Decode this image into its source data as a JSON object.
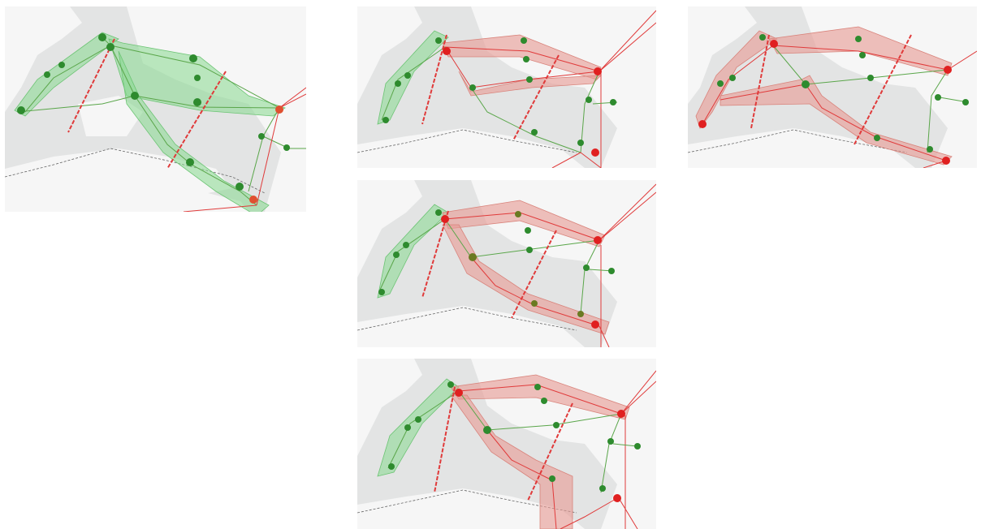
{
  "colors": {
    "background": "#ffffff",
    "water": "#e3e4e4",
    "land": "#f5f5f5",
    "green_station": "#2e8b2e",
    "red_station": "#e02020",
    "green_zone": "#86d88e",
    "red_zone": "#e89a92",
    "green_line": "#5aa64a",
    "red_line": "#e03a3a",
    "border_line": "#666666"
  },
  "icons": [
    "station-node-icon"
  ],
  "panels": [
    {
      "id": "p1",
      "zones": [
        {
          "color": "green"
        },
        {
          "color": "green"
        },
        {
          "color": "green"
        }
      ],
      "cut_lines": 2,
      "red_stations": 2
    },
    {
      "id": "p2",
      "zones": [
        {
          "color": "green"
        },
        {
          "color": "red"
        },
        {
          "color": "red"
        }
      ],
      "cut_lines": 3,
      "red_stations": 3
    },
    {
      "id": "p3",
      "zones": [
        {
          "color": "red"
        },
        {
          "color": "red"
        },
        {
          "color": "red"
        }
      ],
      "cut_lines": 3,
      "red_stations": 4
    },
    {
      "id": "p4",
      "zones": [
        {
          "color": "green"
        },
        {
          "color": "red"
        },
        {
          "color": "red"
        }
      ],
      "cut_lines": 3,
      "red_stations": 3
    },
    {
      "id": "p5",
      "zones": [
        {
          "color": "green"
        },
        {
          "color": "red"
        },
        {
          "color": "red"
        }
      ],
      "cut_lines": 3,
      "red_stations": 3
    }
  ]
}
